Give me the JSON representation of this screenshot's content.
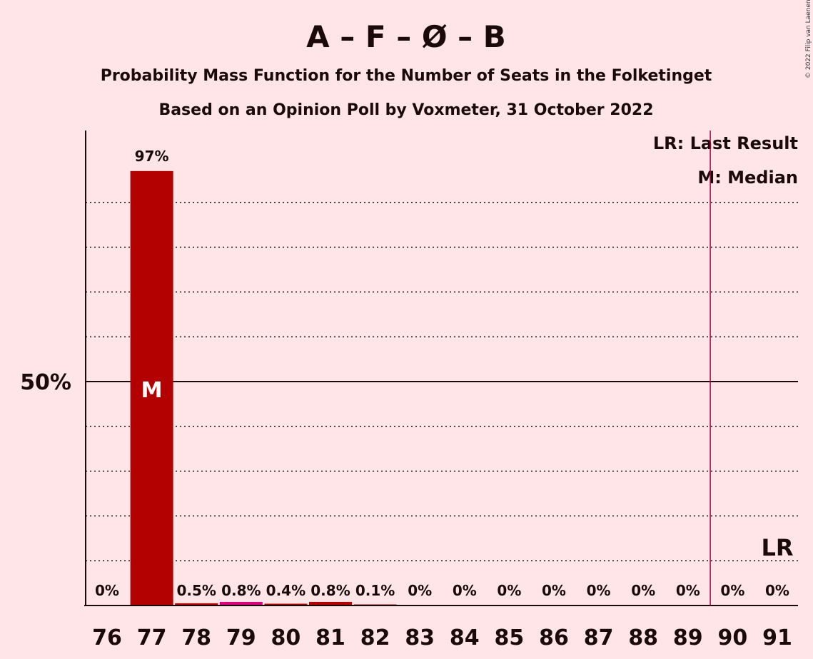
{
  "header": {
    "title": "A – F – Ø – B",
    "subtitle1": "Probability Mass Function for the Number of Seats in the Folketinget",
    "subtitle2": "Based on an Opinion Poll by Voxmeter, 31 October 2022"
  },
  "legend": {
    "last_result": "LR: Last Result",
    "median": "M: Median"
  },
  "copyright": "© 2022 Filip van Laenen",
  "colors": {
    "background": "#FFE4E8",
    "bar_main": "#B30000",
    "bar_alt": "#D6007A",
    "lr_line": "#B0004A",
    "text": "#1a0a0a"
  },
  "chart_data": {
    "type": "bar",
    "categories": [
      "76",
      "77",
      "78",
      "79",
      "80",
      "81",
      "82",
      "83",
      "84",
      "85",
      "86",
      "87",
      "88",
      "89",
      "90",
      "91"
    ],
    "values": [
      0,
      97,
      0.5,
      0.8,
      0.4,
      0.8,
      0.1,
      0,
      0,
      0,
      0,
      0,
      0,
      0,
      0,
      0
    ],
    "data_labels": [
      "0%",
      "97%",
      "0.5%",
      "0.8%",
      "0.4%",
      "0.8%",
      "0.1%",
      "0%",
      "0%",
      "0%",
      "0%",
      "0%",
      "0%",
      "0%",
      "0%",
      "0%"
    ],
    "bar_colors": [
      "#B30000",
      "#B30000",
      "#B30000",
      "#D6007A",
      "#B30000",
      "#B30000",
      "#B30000",
      "#B30000",
      "#B30000",
      "#B30000",
      "#B30000",
      "#B30000",
      "#B30000",
      "#B30000",
      "#B30000",
      "#B30000"
    ],
    "ylim": [
      0,
      100
    ],
    "yticks": [
      {
        "value": 50,
        "label": "50%"
      }
    ],
    "gridlines": [
      10,
      20,
      30,
      40,
      60,
      70,
      80,
      90
    ],
    "median_seat": "77",
    "median_label": "M",
    "last_result_seat": "91",
    "last_result_line_between": [
      "89",
      "90"
    ],
    "last_result_label": "LR",
    "grid": true,
    "legend_position": "top-right"
  }
}
